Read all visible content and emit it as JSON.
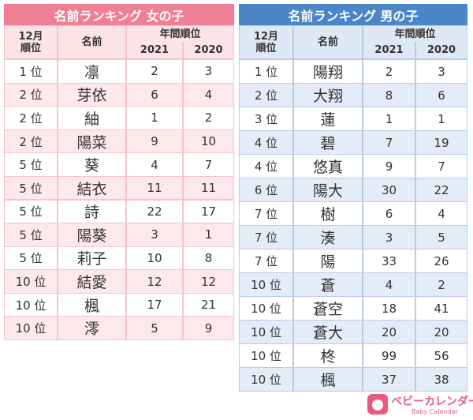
{
  "girls": {
    "title": "名前ランキング 女の子",
    "header": {
      "rank": [
        "12月",
        "順位"
      ],
      "name": "名前",
      "annual": "年間順位",
      "years": [
        "2021",
        "2020"
      ]
    },
    "rows": [
      [
        "1 位",
        "凛",
        2,
        3
      ],
      [
        "2 位",
        "芽依",
        6,
        4
      ],
      [
        "2 位",
        "紬",
        1,
        2
      ],
      [
        "2 位",
        "陽菜",
        9,
        10
      ],
      [
        "5 位",
        "葵",
        4,
        7
      ],
      [
        "5 位",
        "結衣",
        11,
        11
      ],
      [
        "5 位",
        "詩",
        22,
        17
      ],
      [
        "5 位",
        "陽葵",
        3,
        1
      ],
      [
        "5 位",
        "莉子",
        10,
        8
      ],
      [
        "10 位",
        "結愛",
        12,
        12
      ],
      [
        "10 位",
        "楓",
        17,
        21
      ],
      [
        "10 位",
        "澪",
        5,
        9
      ]
    ]
  },
  "boys": {
    "title": "名前ランキング 男の子",
    "header": {
      "rank": [
        "12月",
        "順位"
      ],
      "name": "名前",
      "annual": "年間順位",
      "years": [
        "2021",
        "2020"
      ]
    },
    "rows": [
      [
        "1 位",
        "陽翔",
        2,
        3
      ],
      [
        "2 位",
        "大翔",
        8,
        6
      ],
      [
        "3 位",
        "蓮",
        1,
        1
      ],
      [
        "4 位",
        "碧",
        7,
        19
      ],
      [
        "4 位",
        "悠真",
        9,
        7
      ],
      [
        "6 位",
        "陽大",
        30,
        22
      ],
      [
        "7 位",
        "樹",
        6,
        4
      ],
      [
        "7 位",
        "湊",
        3,
        5
      ],
      [
        "7 位",
        "陽",
        33,
        26
      ],
      [
        "10 位",
        "蒼",
        4,
        2
      ],
      [
        "10 位",
        "蒼空",
        18,
        41
      ],
      [
        "10 位",
        "蒼大",
        20,
        20
      ],
      [
        "10 位",
        "柊",
        99,
        56
      ],
      [
        "10 位",
        "楓",
        37,
        38
      ]
    ]
  },
  "logo": {
    "name": "ベビーカレンダー",
    "sub": "Baby Calendar"
  }
}
